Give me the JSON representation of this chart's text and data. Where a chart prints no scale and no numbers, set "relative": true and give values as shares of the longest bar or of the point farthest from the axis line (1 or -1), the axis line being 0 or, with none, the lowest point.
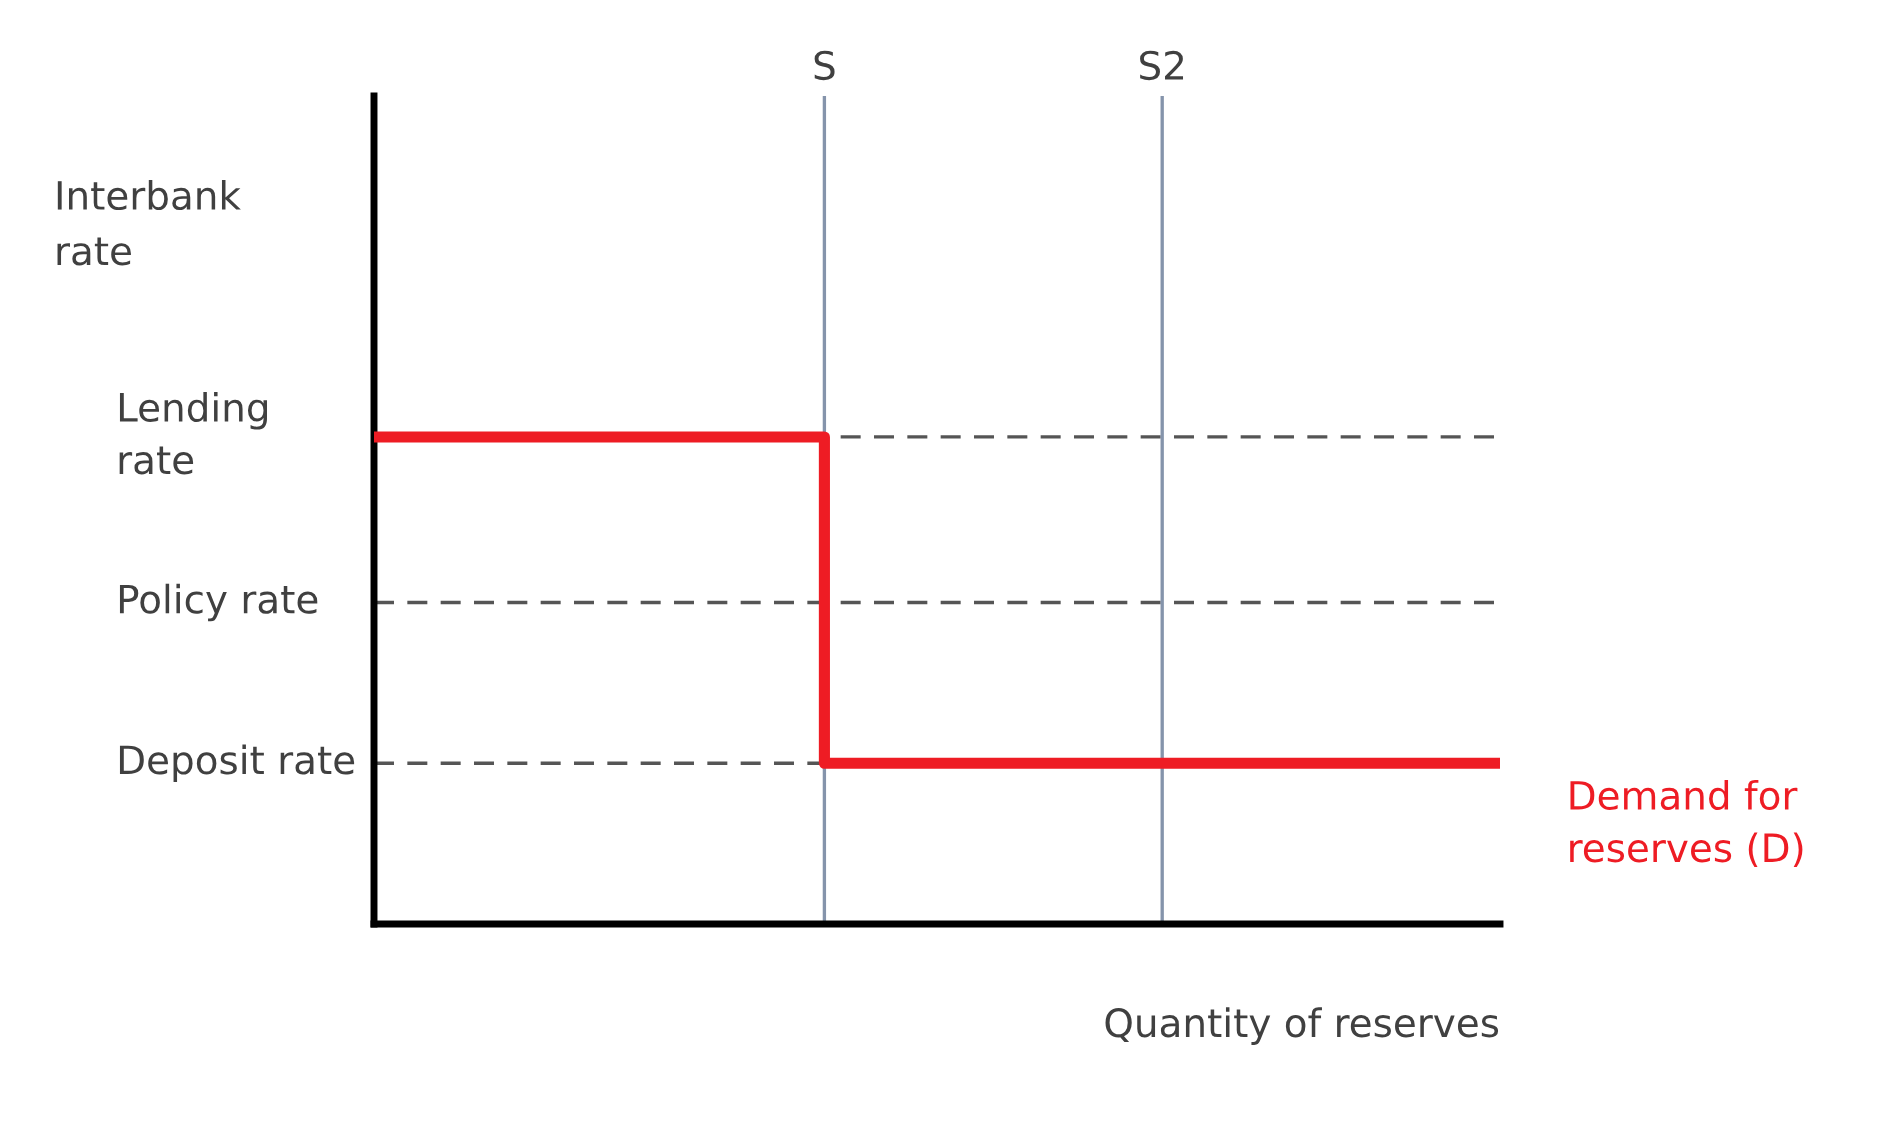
{
  "chart_data": {
    "type": "step",
    "relative": true,
    "xlabel": "Quantity of reserves",
    "categories": [
      null,
      null,
      null,
      null,
      "S",
      null,
      null,
      "S2",
      null,
      null,
      null
    ],
    "series": [
      {
        "name": "Demand for\nreserves (D)",
        "color": "#ee1c24",
        "values": [
          1,
          1,
          1,
          1,
          0.33,
          0.33,
          0.33,
          0.33,
          0.33,
          0.33,
          0.33
        ]
      }
    ],
    "ref_lines": [
      {
        "axis": "y",
        "value": 1,
        "label": "Lending\nrate",
        "color": "#555555",
        "line_style": "dashed"
      },
      {
        "axis": "y",
        "value": 0.66,
        "label": "Policy rate",
        "color": "#555555",
        "line_style": "dashed"
      },
      {
        "axis": "y",
        "value": 0.33,
        "label": "Deposit rate",
        "color": "#555555",
        "line_style": "dashed"
      },
      {
        "axis": "x",
        "value": "S",
        "color": "#8594ab",
        "line_style": "solid"
      },
      {
        "axis": "x",
        "value": "S2",
        "color": "#8594ab",
        "line_style": "solid"
      }
    ],
    "annotations": [
      "Interbank\nrate"
    ]
  }
}
